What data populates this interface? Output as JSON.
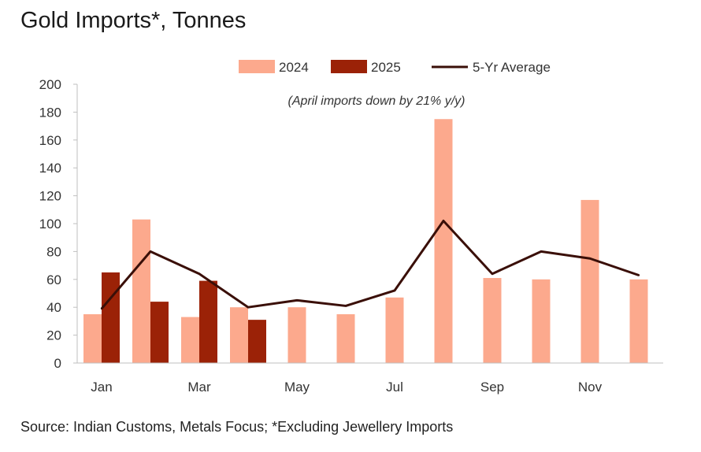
{
  "title": "Gold Imports*, Tonnes",
  "source": "Source: Indian Customs, Metals Focus; *Excluding Jewellery Imports",
  "colors": {
    "series_2024": "#fca98d",
    "series_2025": "#9b2207",
    "average_line": "#3a0f08",
    "axis": "#bfbfbf"
  },
  "chart_data": {
    "type": "bar",
    "title": "Gold Imports*, Tonnes",
    "annotation": "(April imports down by 21% y/y)",
    "categories": [
      "Jan",
      "Feb",
      "Mar",
      "Apr",
      "May",
      "Jun",
      "Jul",
      "Aug",
      "Sep",
      "Oct",
      "Nov",
      "Dec"
    ],
    "x_tick_labels": [
      "Jan",
      "",
      "Mar",
      "",
      "May",
      "",
      "Jul",
      "",
      "Sep",
      "",
      "Nov",
      ""
    ],
    "series": [
      {
        "name": "2024",
        "type": "bar",
        "values": [
          35,
          103,
          33,
          40,
          40,
          35,
          47,
          175,
          61,
          60,
          117,
          60
        ]
      },
      {
        "name": "2025",
        "type": "bar",
        "values": [
          65,
          44,
          59,
          31,
          null,
          null,
          null,
          null,
          null,
          null,
          null,
          null
        ]
      },
      {
        "name": "5-Yr Average",
        "type": "line",
        "values": [
          39,
          80,
          64,
          40,
          45,
          41,
          52,
          102,
          64,
          80,
          75,
          63
        ]
      }
    ],
    "ylim": [
      0,
      200
    ],
    "yticks": [
      0,
      20,
      40,
      60,
      80,
      100,
      120,
      140,
      160,
      180,
      200
    ],
    "xlabel": "",
    "ylabel": "",
    "legend": [
      "2024",
      "2025",
      "5-Yr Average"
    ],
    "legend_position": "top-center",
    "grid": false
  }
}
